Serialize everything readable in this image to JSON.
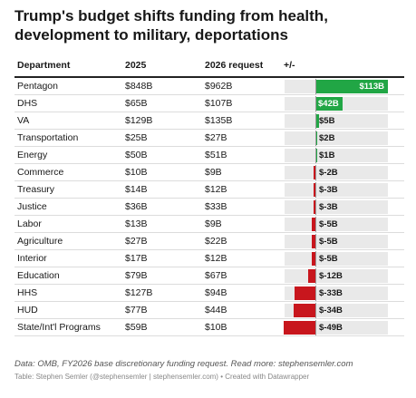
{
  "title": "Trump's budget shifts funding from health, development to military, deportations",
  "columns": {
    "department": "Department",
    "y2025": "2025",
    "y2026": "2026 request",
    "change": "+/-"
  },
  "colors": {
    "positive": "#21a645",
    "negative": "#c8161d",
    "track": "#e9e9e9"
  },
  "chart_data": {
    "type": "table",
    "rows": [
      {
        "department": "Pentagon",
        "y2025": "$848B",
        "y2026": "$962B",
        "change": 113,
        "change_label": "$113B"
      },
      {
        "department": "DHS",
        "y2025": "$65B",
        "y2026": "$107B",
        "change": 42,
        "change_label": "$42B"
      },
      {
        "department": "VA",
        "y2025": "$129B",
        "y2026": "$135B",
        "change": 5,
        "change_label": "$5B"
      },
      {
        "department": "Transportation",
        "y2025": "$25B",
        "y2026": "$27B",
        "change": 2,
        "change_label": "$2B"
      },
      {
        "department": "Energy",
        "y2025": "$50B",
        "y2026": "$51B",
        "change": 1,
        "change_label": "$1B"
      },
      {
        "department": "Commerce",
        "y2025": "$10B",
        "y2026": "$9B",
        "change": -2,
        "change_label": "$-2B"
      },
      {
        "department": "Treasury",
        "y2025": "$14B",
        "y2026": "$12B",
        "change": -3,
        "change_label": "$-3B"
      },
      {
        "department": "Justice",
        "y2025": "$36B",
        "y2026": "$33B",
        "change": -3,
        "change_label": "$-3B"
      },
      {
        "department": "Labor",
        "y2025": "$13B",
        "y2026": "$9B",
        "change": -5,
        "change_label": "$-5B"
      },
      {
        "department": "Agriculture",
        "y2025": "$27B",
        "y2026": "$22B",
        "change": -5,
        "change_label": "$-5B"
      },
      {
        "department": "Interior",
        "y2025": "$17B",
        "y2026": "$12B",
        "change": -5,
        "change_label": "$-5B"
      },
      {
        "department": "Education",
        "y2025": "$79B",
        "y2026": "$67B",
        "change": -12,
        "change_label": "$-12B"
      },
      {
        "department": "HHS",
        "y2025": "$127B",
        "y2026": "$94B",
        "change": -33,
        "change_label": "$-33B"
      },
      {
        "department": "HUD",
        "y2025": "$77B",
        "y2026": "$44B",
        "change": -34,
        "change_label": "$-34B"
      },
      {
        "department": "State/Int'l Programs",
        "y2025": "$59B",
        "y2026": "$10B",
        "change": -49,
        "change_label": "$-49B"
      }
    ]
  },
  "footer": {
    "source": "Data: OMB, FY2026 base discretionary funding request. Read more: stephensemler.com",
    "credit": "Table: Stephen Semler (@stephensemler | stephensemler.com) • Created with Datawrapper"
  }
}
